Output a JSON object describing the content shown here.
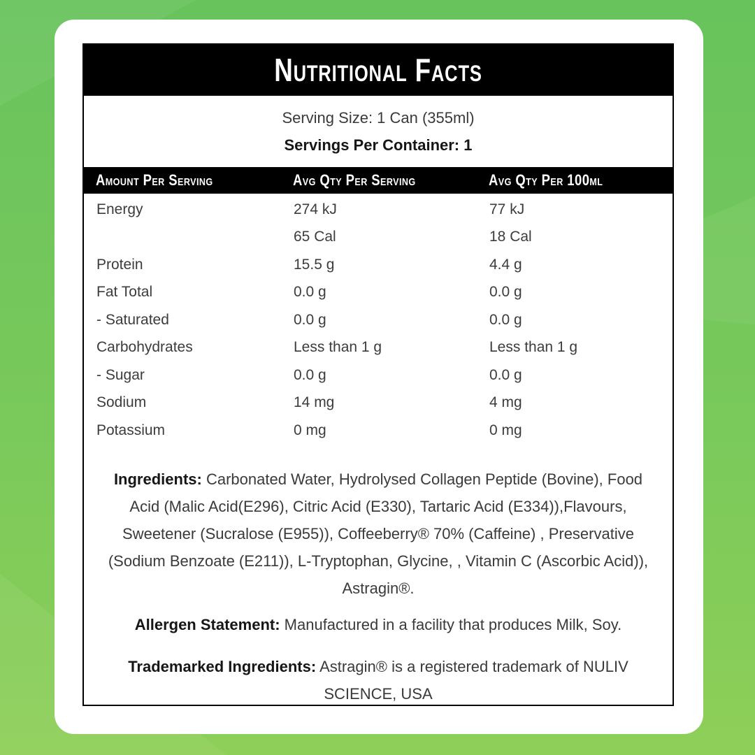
{
  "background": {
    "green_top": "#68c35c",
    "green_bottom": "#8ecf58",
    "panel": "#ffffff",
    "bar": "#000000"
  },
  "label": {
    "title": "Nutritional Facts",
    "serving_size": "Serving Size: 1 Can (355ml)",
    "servings_per_container": "Servings Per Container: 1",
    "table": {
      "headers": [
        "Amount Per Serving",
        "Avg Qty Per Serving",
        "Avg Qty Per 100ml"
      ],
      "rows": [
        {
          "label": "Energy",
          "per_serving": "274 kJ",
          "per_100ml": "77 kJ"
        },
        {
          "label": "",
          "per_serving": "65 Cal",
          "per_100ml": "18 Cal"
        },
        {
          "label": "Protein",
          "per_serving": "15.5 g",
          "per_100ml": "4.4 g"
        },
        {
          "label": "Fat Total",
          "per_serving": "0.0 g",
          "per_100ml": "0.0 g"
        },
        {
          "label": "- Saturated",
          "per_serving": "0.0 g",
          "per_100ml": "0.0 g"
        },
        {
          "label": "Carbohydrates",
          "per_serving": "Less than 1 g",
          "per_100ml": "Less than 1 g"
        },
        {
          "label": "- Sugar",
          "per_serving": "0.0 g",
          "per_100ml": "0.0 g"
        },
        {
          "label": "Sodium",
          "per_serving": "14 mg",
          "per_100ml": "4 mg"
        },
        {
          "label": "Potassium",
          "per_serving": "0 mg",
          "per_100ml": "0 mg"
        }
      ]
    },
    "ingredients": {
      "label": "Ingredients:",
      "text": " Carbonated Water, Hydrolysed Collagen Peptide (Bovine), Food Acid (Malic Acid(E296), Citric Acid (E330), Tartaric Acid (E334)),Flavours, Sweetener (Sucralose (E955)), Coffeeberry® 70% (Caffeine) , Preservative (Sodium Benzoate (E211)), L-Tryptophan, Glycine, , Vitamin C (Ascorbic Acid)), Astragin®."
    },
    "allergen": {
      "label": "Allergen Statement:",
      "text": " Manufactured in a facility that produces Milk, Soy."
    },
    "trademark": {
      "label": "Trademarked Ingredients:",
      "text": " Astragin® is a registered trademark of NULIV SCIENCE, USA"
    }
  }
}
